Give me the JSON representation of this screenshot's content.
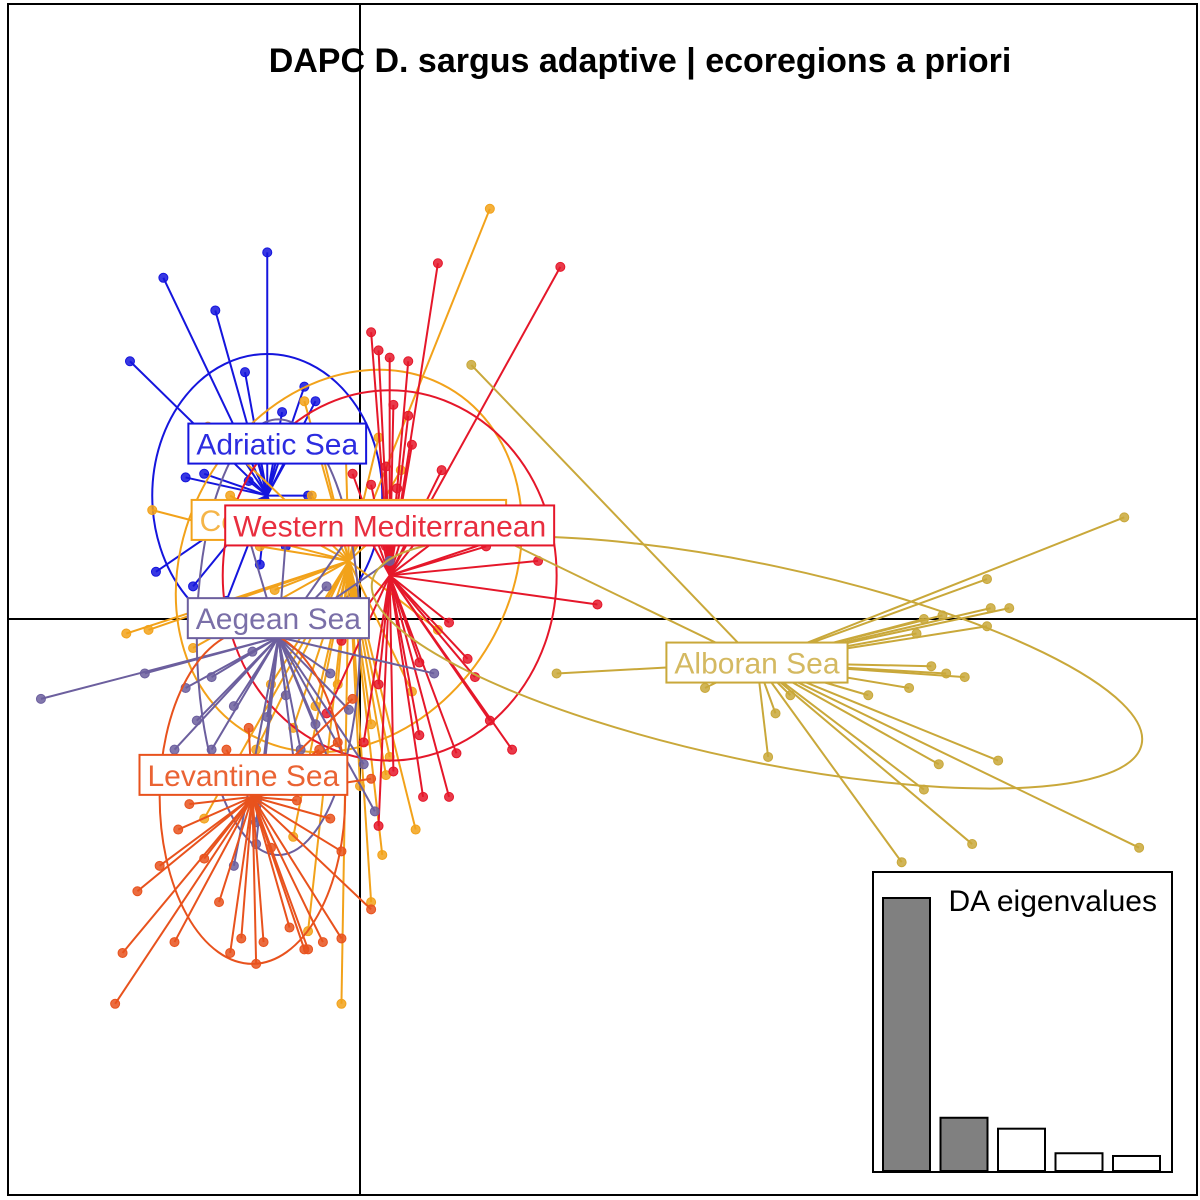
{
  "chart_data": {
    "type": "scatter",
    "title": "DAPC D. sargus adaptive | ecoregions a priori",
    "axes": {
      "x_range": [
        -1.0,
        2.3
      ],
      "y_range": [
        -1.6,
        1.6
      ],
      "axis_lines_at": [
        0,
        0
      ],
      "grid": false
    },
    "groups": [
      {
        "name": "Adriatic Sea",
        "color": "#1515dd",
        "centroid": [
          -0.25,
          0.34
        ],
        "ellipse": {
          "rx": 0.31,
          "ry": 0.39,
          "angle": 0
        },
        "points": [
          [
            -0.53,
            0.94
          ],
          [
            -0.25,
            1.01
          ],
          [
            -0.62,
            0.71
          ],
          [
            -0.39,
            0.85
          ],
          [
            -0.31,
            0.68
          ],
          [
            -0.15,
            0.64
          ],
          [
            -0.29,
            0.5
          ],
          [
            -0.36,
            0.51
          ],
          [
            -0.21,
            0.57
          ],
          [
            -0.12,
            0.6
          ],
          [
            -0.18,
            0.47
          ],
          [
            -0.42,
            0.4
          ],
          [
            -0.3,
            0.38
          ],
          [
            -0.22,
            0.46
          ],
          [
            -0.47,
            0.39
          ],
          [
            -0.38,
            0.28
          ],
          [
            -0.32,
            0.22
          ],
          [
            -0.2,
            0.2
          ],
          [
            -0.14,
            0.34
          ],
          [
            -0.27,
            0.15
          ],
          [
            -0.55,
            0.13
          ],
          [
            -0.45,
            0.09
          ],
          [
            -0.36,
            0.05
          ]
        ]
      },
      {
        "name": "Central Mediterranean",
        "color": "#f2a21a",
        "centroid": [
          -0.03,
          0.16
        ],
        "ellipse": {
          "rx": 0.44,
          "ry": 0.55,
          "angle": -30
        },
        "points": [
          [
            0.35,
            1.13
          ],
          [
            -0.41,
            0.53
          ],
          [
            -0.15,
            0.6
          ],
          [
            -0.13,
            0.34
          ],
          [
            -0.56,
            0.3
          ],
          [
            -0.35,
            0.34
          ],
          [
            -0.27,
            0.2
          ],
          [
            -0.23,
            0.08
          ],
          [
            -0.1,
            0.45
          ],
          [
            -0.04,
            0.52
          ],
          [
            0.11,
            0.41
          ],
          [
            -0.63,
            -0.04
          ],
          [
            -0.57,
            -0.03
          ],
          [
            -0.45,
            -0.08
          ],
          [
            -0.24,
            -0.18
          ],
          [
            -0.18,
            -0.3
          ],
          [
            -0.12,
            -0.24
          ],
          [
            -0.06,
            -0.18
          ],
          [
            0.03,
            -0.29
          ],
          [
            0.08,
            -0.38
          ],
          [
            0.0,
            -0.46
          ],
          [
            -0.28,
            -0.36
          ],
          [
            -0.42,
            -0.55
          ],
          [
            -0.18,
            -0.6
          ],
          [
            -0.14,
            -0.86
          ],
          [
            0.03,
            -0.78
          ],
          [
            0.07,
            -0.43
          ],
          [
            0.14,
            -0.2
          ],
          [
            0.21,
            -0.03
          ],
          [
            0.06,
            -0.65
          ],
          [
            -0.05,
            -1.06
          ],
          [
            0.15,
            -0.58
          ],
          [
            0.12,
            0.3
          ],
          [
            0.05,
            0.5
          ]
        ]
      },
      {
        "name": "Western Mediterranean",
        "color": "#e5172a",
        "centroid": [
          0.08,
          0.12
        ],
        "ellipse": {
          "rx": 0.45,
          "ry": 0.51,
          "angle": 0
        },
        "points": [
          [
            0.54,
            0.97
          ],
          [
            0.21,
            0.98
          ],
          [
            0.03,
            0.79
          ],
          [
            0.05,
            0.74
          ],
          [
            0.08,
            0.72
          ],
          [
            0.13,
            0.71
          ],
          [
            0.13,
            0.56
          ],
          [
            0.14,
            0.48
          ],
          [
            0.1,
            0.36
          ],
          [
            0.22,
            0.41
          ],
          [
            0.13,
            0.28
          ],
          [
            0.03,
            0.37
          ],
          [
            0.0,
            0.27
          ],
          [
            0.07,
            0.2
          ],
          [
            0.18,
            0.25
          ],
          [
            0.34,
            0.2
          ],
          [
            0.26,
            0.26
          ],
          [
            0.4,
            0.23
          ],
          [
            0.48,
            0.16
          ],
          [
            0.64,
            0.04
          ],
          [
            0.24,
            -0.01
          ],
          [
            0.29,
            -0.11
          ],
          [
            0.31,
            -0.16
          ],
          [
            0.35,
            -0.28
          ],
          [
            0.41,
            -0.36
          ],
          [
            0.24,
            -0.49
          ],
          [
            0.26,
            -0.37
          ],
          [
            0.09,
            -0.42
          ],
          [
            0.05,
            -0.57
          ],
          [
            0.17,
            -0.49
          ],
          [
            0.16,
            -0.32
          ],
          [
            0.05,
            -0.18
          ],
          [
            -0.05,
            -0.06
          ],
          [
            -0.09,
            -0.26
          ],
          [
            0.01,
            -0.34
          ],
          [
            0.16,
            -0.12
          ],
          [
            -0.02,
            0.4
          ],
          [
            0.09,
            0.59
          ],
          [
            0.07,
            0.42
          ]
        ]
      },
      {
        "name": "Aegean Sea",
        "color": "#6c5f9e",
        "centroid": [
          -0.22,
          -0.05
        ],
        "ellipse": {
          "rx": 0.22,
          "ry": 0.6,
          "angle": 0
        },
        "points": [
          [
            -0.86,
            -0.22
          ],
          [
            -0.58,
            -0.15
          ],
          [
            -0.47,
            -0.19
          ],
          [
            -0.4,
            -0.16
          ],
          [
            -0.34,
            -0.24
          ],
          [
            -0.29,
            -0.09
          ],
          [
            -0.25,
            -0.27
          ],
          [
            -0.2,
            -0.21
          ],
          [
            -0.16,
            -0.36
          ],
          [
            -0.12,
            -0.29
          ],
          [
            -0.08,
            -0.15
          ],
          [
            -0.03,
            -0.25
          ],
          [
            0.01,
            -0.4
          ],
          [
            0.04,
            -0.53
          ],
          [
            -0.06,
            -0.45
          ],
          [
            -0.17,
            -0.46
          ],
          [
            -0.28,
            -0.56
          ],
          [
            -0.5,
            -0.36
          ],
          [
            -0.4,
            -0.36
          ],
          [
            -0.34,
            -0.68
          ],
          [
            -0.28,
            -0.62
          ],
          [
            -0.44,
            -0.28
          ],
          [
            -0.31,
            0.26
          ],
          [
            -0.2,
            0.22
          ],
          [
            0.0,
            0.27
          ],
          [
            -0.09,
            0.09
          ],
          [
            0.08,
            0.16
          ],
          [
            0.2,
            -0.15
          ]
        ]
      },
      {
        "name": "Levantine Sea",
        "color": "#e8521d",
        "centroid": [
          -0.29,
          -0.49
        ],
        "ellipse": {
          "rx": 0.25,
          "ry": 0.46,
          "angle": 0
        },
        "points": [
          [
            -0.64,
            -0.92
          ],
          [
            -0.6,
            -0.75
          ],
          [
            -0.54,
            -0.68
          ],
          [
            -0.49,
            -0.58
          ],
          [
            -0.46,
            -0.51
          ],
          [
            -0.4,
            -0.4
          ],
          [
            -0.36,
            -0.36
          ],
          [
            -0.42,
            -0.66
          ],
          [
            -0.38,
            -0.78
          ],
          [
            -0.32,
            -0.88
          ],
          [
            -0.28,
            -0.95
          ],
          [
            -0.24,
            -0.63
          ],
          [
            -0.19,
            -0.85
          ],
          [
            -0.15,
            -0.91
          ],
          [
            -0.17,
            -0.5
          ],
          [
            -0.11,
            -0.36
          ],
          [
            -0.08,
            -0.55
          ],
          [
            -0.22,
            -0.43
          ],
          [
            -0.3,
            -0.3
          ],
          [
            -0.12,
            -0.43
          ],
          [
            -0.06,
            -0.34
          ],
          [
            -0.02,
            -0.22
          ],
          [
            0.03,
            -0.44
          ],
          [
            -0.66,
            -1.06
          ],
          [
            -0.26,
            -0.89
          ],
          [
            -0.14,
            -0.91
          ],
          [
            -0.1,
            -0.89
          ],
          [
            -0.05,
            -0.88
          ],
          [
            -0.5,
            -0.89
          ],
          [
            -0.35,
            -0.92
          ],
          [
            0.03,
            -0.8
          ],
          [
            -0.05,
            -0.64
          ]
        ]
      },
      {
        "name": "Alboran Sea",
        "color": "#c9a83a",
        "centroid": [
          1.07,
          -0.12
        ],
        "ellipse": {
          "rx": 1.06,
          "ry": 0.27,
          "angle": -12
        },
        "points": [
          [
            2.06,
            0.28
          ],
          [
            1.69,
            0.11
          ],
          [
            1.7,
            0.03
          ],
          [
            1.57,
            0.01
          ],
          [
            1.52,
            0.0
          ],
          [
            1.75,
            0.03
          ],
          [
            1.69,
            -0.02
          ],
          [
            1.5,
            -0.04
          ],
          [
            1.54,
            -0.13
          ],
          [
            1.58,
            -0.15
          ],
          [
            1.63,
            -0.16
          ],
          [
            1.48,
            -0.19
          ],
          [
            1.37,
            -0.21
          ],
          [
            1.56,
            -0.4
          ],
          [
            1.72,
            -0.39
          ],
          [
            1.65,
            -0.62
          ],
          [
            2.1,
            -0.63
          ],
          [
            1.52,
            -0.47
          ],
          [
            1.46,
            -0.67
          ],
          [
            1.12,
            -0.26
          ],
          [
            1.16,
            -0.21
          ],
          [
            0.93,
            -0.19
          ],
          [
            1.1,
            -0.38
          ],
          [
            0.3,
            0.7
          ],
          [
            0.22,
            0.3
          ],
          [
            0.53,
            -0.15
          ]
        ]
      }
    ],
    "scree": {
      "title": "DA eigenvalues",
      "values": [
        100,
        19.5,
        15.5,
        6.5,
        5.5
      ],
      "retained": 2
    }
  }
}
